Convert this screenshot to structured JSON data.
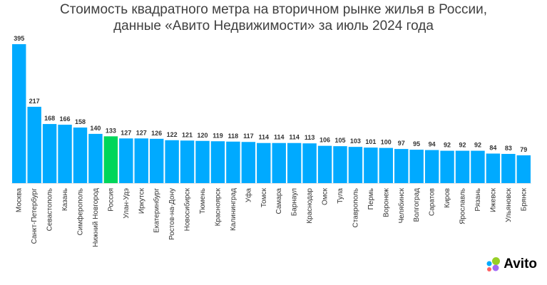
{
  "chart_data": {
    "type": "bar",
    "title_line1": "Стоимость квадратного метра на вторичном рынке жилья в России,",
    "title_line2": "данные «Авито Недвижимости» за июль 2024 года",
    "categories": [
      "Москва",
      "Санкт-Петербург",
      "Севастополь",
      "Казань",
      "Симферополь",
      "Нижний Новгород",
      "Россия",
      "Улан-Удэ",
      "Иркутск",
      "Екатеринбург",
      "Ростов-на-Дону",
      "Новосибирск",
      "Тюмень",
      "Красноярск",
      "Калининград",
      "Уфа",
      "Томск",
      "Самара",
      "Барнаул",
      "Краснодар",
      "Омск",
      "Тула",
      "Ставрополь",
      "Пермь",
      "Воронеж",
      "Челябинск",
      "Волгоград",
      "Саратов",
      "Киров",
      "Ярославль",
      "Рязань",
      "Ижевск",
      "Ульяновск",
      "Брянск"
    ],
    "values": [
      395,
      217,
      168,
      166,
      158,
      140,
      133,
      127,
      127,
      126,
      122,
      121,
      120,
      119,
      118,
      117,
      114,
      114,
      114,
      113,
      106,
      105,
      103,
      101,
      100,
      97,
      95,
      94,
      92,
      92,
      92,
      84,
      83,
      79
    ],
    "highlight": "Россия",
    "colors": {
      "bar": "#00AAFF",
      "highlight": "#00D65A",
      "label": "#333333"
    },
    "ylim": [
      0,
      395
    ],
    "grid": false,
    "xlabel": "",
    "ylabel": ""
  },
  "brand": {
    "name": "Avito"
  }
}
